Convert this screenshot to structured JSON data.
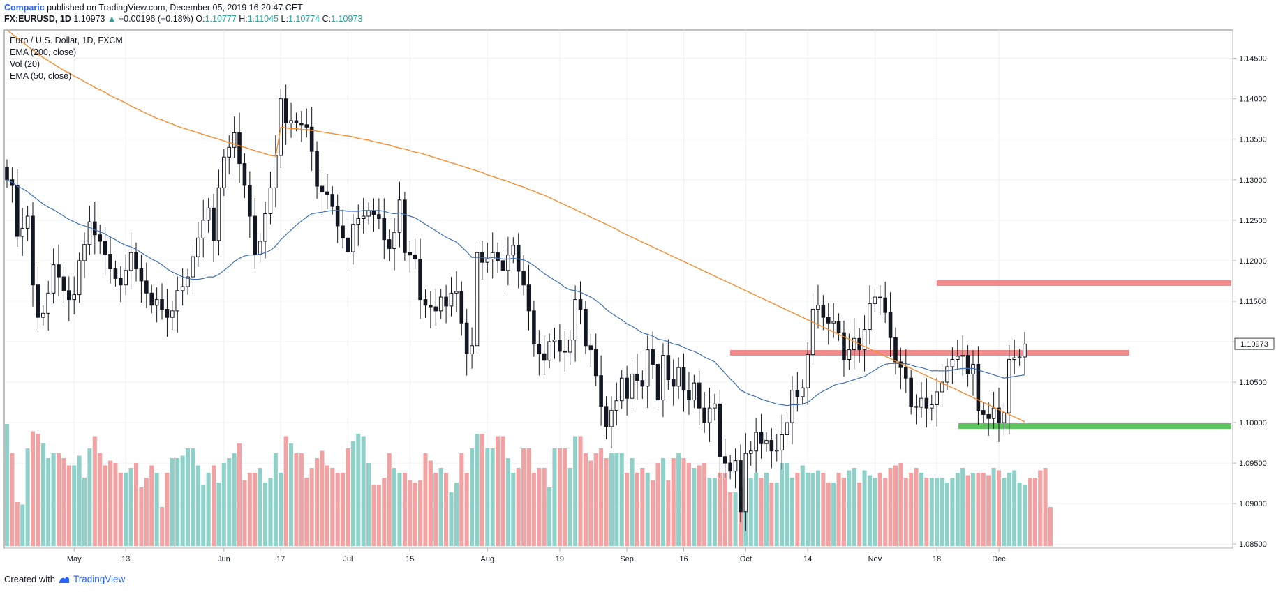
{
  "header": {
    "author": "Comparic",
    "published_text": "published on TradingView.com, December 05, 2019 16:20:47 CET",
    "symbol": "FX:EURUSD, 1D",
    "last": "1.10973",
    "change_arrow": "▲",
    "change": "+0.00196 (+0.18%)",
    "o_label": "O:",
    "o": "1.10777",
    "h_label": "H:",
    "h": "1.11045",
    "l_label": "L:",
    "l": "1.10774",
    "c_label": "C:",
    "c": "1.10973"
  },
  "legend": {
    "title": "Euro / U.S. Dollar, 1D, FXCM",
    "ind1": "EMA (200, close)",
    "ind2": "Vol (20)",
    "ind3": "EMA (50, close)"
  },
  "footer": {
    "created_with": "Created with",
    "brand": "TradingView"
  },
  "colors": {
    "up_volume": "#8fd1c9",
    "down_volume": "#f2a2a2",
    "ema200": "#f68c2f",
    "ema50": "#3e6fb5",
    "resistance": "#f28c8c",
    "support": "#5fc65f",
    "price_badge_bg": "#ffffff"
  },
  "chart_data": {
    "type": "candlestick",
    "title": "Euro / U.S. Dollar, 1D, FXCM",
    "ylim": [
      1.0845,
      1.1485
    ],
    "y_ticks": [
      "1.14500",
      "1.14000",
      "1.13500",
      "1.13000",
      "1.12500",
      "1.12000",
      "1.11500",
      "1.11000",
      "1.10500",
      "1.10000",
      "1.09500",
      "1.09000",
      "1.08500"
    ],
    "last_price_label": "1.10973",
    "x_ticks": [
      {
        "label": "May",
        "i": 13
      },
      {
        "label": "13",
        "i": 23
      },
      {
        "label": "Jun",
        "i": 42
      },
      {
        "label": "17",
        "i": 53
      },
      {
        "label": "Jul",
        "i": 66
      },
      {
        "label": "15",
        "i": 78
      },
      {
        "label": "Aug",
        "i": 93
      },
      {
        "label": "19",
        "i": 107
      },
      {
        "label": "Sep",
        "i": 120
      },
      {
        "label": "16",
        "i": 131
      },
      {
        "label": "Oct",
        "i": 143
      },
      {
        "label": "14",
        "i": 155
      },
      {
        "label": "Nov",
        "i": 168
      },
      {
        "label": "18",
        "i": 180
      },
      {
        "label": "Dec",
        "i": 192
      }
    ],
    "closes": [
      1.13,
      1.1293,
      1.123,
      1.124,
      1.1255,
      1.117,
      1.113,
      1.1135,
      1.116,
      1.1195,
      1.118,
      1.1163,
      1.1152,
      1.1158,
      1.12,
      1.122,
      1.1248,
      1.1232,
      1.1224,
      1.1208,
      1.119,
      1.1178,
      1.117,
      1.1188,
      1.121,
      1.119,
      1.1175,
      1.116,
      1.1145,
      1.1152,
      1.114,
      1.113,
      1.1138,
      1.1163,
      1.1168,
      1.118,
      1.1205,
      1.1228,
      1.125,
      1.1265,
      1.1225,
      1.129,
      1.1328,
      1.134,
      1.1358,
      1.132,
      1.1293,
      1.1255,
      1.1208,
      1.1224,
      1.1258,
      1.129,
      1.133,
      1.14,
      1.137,
      1.1373,
      1.137,
      1.1368,
      1.1365,
      1.1335,
      1.1292,
      1.1285,
      1.1282,
      1.1267,
      1.1243,
      1.1228,
      1.1211,
      1.1245,
      1.1252,
      1.1255,
      1.1262,
      1.1257,
      1.1252,
      1.1226,
      1.1215,
      1.1235,
      1.1275,
      1.121,
      1.1207,
      1.1202,
      1.1152,
      1.1145,
      1.1143,
      1.1138,
      1.1155,
      1.1144,
      1.116,
      1.1162,
      1.1123,
      1.1085,
      1.1095,
      1.121,
      1.1198,
      1.1202,
      1.121,
      1.12,
      1.1188,
      1.1207,
      1.1219,
      1.1187,
      1.117,
      1.1138,
      1.1097,
      1.1085,
      1.1077,
      1.11,
      1.1102,
      1.1088,
      1.1087,
      1.1102,
      1.1152,
      1.114,
      1.1095,
      1.109,
      1.1058,
      1.102,
      1.0995,
      1.1015,
      1.1027,
      1.1055,
      1.103,
      1.106,
      1.1052,
      1.1045,
      1.109,
      1.1072,
      1.1028,
      1.1083,
      1.1053,
      1.1045,
      1.1068,
      1.104,
      1.1028,
      1.1049,
      1.1018,
      1.1,
      1.1018,
      1.1023,
      1.0958,
      1.095,
      1.094,
      1.0953,
      1.089,
      1.0962,
      1.0965,
      1.0988,
      1.0974,
      1.0978,
      1.0965,
      1.0966,
      1.0985,
      1.1,
      1.104,
      1.1032,
      1.1043,
      1.1084,
      1.114,
      1.1145,
      1.113,
      1.1123,
      1.1125,
      1.1111,
      1.1078,
      1.109,
      1.1104,
      1.109,
      1.1115,
      1.1147,
      1.1155,
      1.1154,
      1.1136,
      1.1105,
      1.1075,
      1.1068,
      1.1055,
      1.102,
      1.1019,
      1.103,
      1.1018,
      1.1022,
      1.1038,
      1.105,
      1.1069,
      1.1078,
      1.1082,
      1.1083,
      1.106,
      1.1072,
      1.1015,
      1.101,
      1.1005,
      1.1018,
      1.1,
      1.1012,
      1.1078,
      1.108,
      1.1081,
      1.1097
    ],
    "ema200": [
      1.1485,
      1.148,
      1.1475,
      1.147,
      1.1465,
      1.146,
      1.1455,
      1.1451,
      1.1447,
      1.1443,
      1.1439,
      1.1435,
      1.1432,
      1.1428,
      1.1425,
      1.1421,
      1.1418,
      1.1414,
      1.1411,
      1.1408,
      1.1404,
      1.1401,
      1.1398,
      1.1395,
      1.1391,
      1.1388,
      1.1385,
      1.1382,
      1.1379,
      1.1376,
      1.1374,
      1.1371,
      1.1369,
      1.1366,
      1.1364,
      1.1362,
      1.136,
      1.1358,
      1.1356,
      1.1354,
      1.1352,
      1.135,
      1.1348,
      1.1346,
      1.1344,
      1.1342,
      1.134,
      1.1338,
      1.1336,
      1.1334,
      1.1332,
      1.133,
      1.1329,
      1.1365,
      1.1364,
      1.1363,
      1.1363,
      1.1362,
      1.1362,
      1.1361,
      1.136,
      1.1359,
      1.1358,
      1.1357,
      1.1356,
      1.1355,
      1.1354,
      1.1353,
      1.1351,
      1.135,
      1.1349,
      1.1347,
      1.1346,
      1.1344,
      1.1343,
      1.1341,
      1.1339,
      1.1338,
      1.1336,
      1.1334,
      1.1333,
      1.1331,
      1.1329,
      1.1327,
      1.1325,
      1.1323,
      1.1321,
      1.1319,
      1.1317,
      1.1315,
      1.1313,
      1.1311,
      1.1309,
      1.1306,
      1.1304,
      1.1302,
      1.13,
      1.1298,
      1.1295,
      1.1293,
      1.1291,
      1.1288,
      1.1286,
      1.1283,
      1.1281,
      1.1278,
      1.1275,
      1.1272,
      1.1269,
      1.1266,
      1.1263,
      1.126,
      1.1257,
      1.1254,
      1.1251,
      1.1248,
      1.1245,
      1.1242,
      1.1239,
      1.1235,
      1.1232,
      1.1229,
      1.1226,
      1.1223,
      1.122,
      1.1217,
      1.1214,
      1.1211,
      1.1208,
      1.1205,
      1.1202,
      1.1199,
      1.1196,
      1.1193,
      1.119,
      1.1187,
      1.1184,
      1.1181,
      1.1178,
      1.1175,
      1.1172,
      1.1169,
      1.1166,
      1.1163,
      1.116,
      1.1157,
      1.1154,
      1.1151,
      1.1148,
      1.1145,
      1.1142,
      1.1139,
      1.1136,
      1.1133,
      1.113,
      1.1127,
      1.1124,
      1.1121,
      1.1118,
      1.1115,
      1.1112,
      1.1109,
      1.1106,
      1.1103,
      1.11,
      1.1097,
      1.1094,
      1.1091,
      1.1088,
      1.1085,
      1.1082,
      1.1079,
      1.1076,
      1.1073,
      1.107,
      1.1067,
      1.1064,
      1.1061,
      1.1058,
      1.1055,
      1.1052,
      1.1049,
      1.1046,
      1.1043,
      1.104,
      1.1037,
      1.1034,
      1.1031,
      1.1028,
      1.1025,
      1.1022,
      1.1019,
      1.1016,
      1.1013,
      1.101,
      1.1007,
      1.1004,
      1.1001
    ],
    "ema50": [
      1.13,
      1.1297,
      1.1292,
      1.1289,
      1.1285,
      1.128,
      1.1275,
      1.127,
      1.1266,
      1.1263,
      1.1259,
      1.1255,
      1.1251,
      1.1248,
      1.1245,
      1.1243,
      1.1241,
      1.1238,
      1.1236,
      1.1233,
      1.1229,
      1.1226,
      1.1222,
      1.1219,
      1.1217,
      1.1214,
      1.121,
      1.1206,
      1.1202,
      1.1199,
      1.1195,
      1.119,
      1.1186,
      1.1183,
      1.118,
      1.1178,
      1.1177,
      1.1177,
      1.1178,
      1.118,
      1.118,
      1.1183,
      1.1188,
      1.1193,
      1.1199,
      1.1203,
      1.1206,
      1.1207,
      1.1207,
      1.1208,
      1.121,
      1.1213,
      1.1218,
      1.1226,
      1.1232,
      1.1238,
      1.1244,
      1.1249,
      1.1254,
      1.1258,
      1.1259,
      1.126,
      1.1261,
      1.1262,
      1.1262,
      1.1262,
      1.1261,
      1.1261,
      1.1261,
      1.1262,
      1.1262,
      1.1262,
      1.1262,
      1.1261,
      1.1259,
      1.1258,
      1.1259,
      1.1257,
      1.1255,
      1.1253,
      1.1249,
      1.1245,
      1.1241,
      1.1237,
      1.1233,
      1.1229,
      1.1226,
      1.1223,
      1.1217,
      1.1211,
      1.1204,
      1.1204,
      1.1204,
      1.1203,
      1.1204,
      1.1203,
      1.1202,
      1.1202,
      1.1203,
      1.1202,
      1.1201,
      1.1198,
      1.1194,
      1.1189,
      1.1184,
      1.118,
      1.1176,
      1.1172,
      1.1167,
      1.1164,
      1.1163,
      1.1161,
      1.1158,
      1.1155,
      1.1151,
      1.1146,
      1.114,
      1.1135,
      1.1131,
      1.1127,
      1.1122,
      1.1119,
      1.1115,
      1.1111,
      1.1109,
      1.1107,
      1.1103,
      1.1102,
      1.11,
      1.1097,
      1.1096,
      1.1093,
      1.109,
      1.1088,
      1.1085,
      1.1081,
      1.1078,
      1.1075,
      1.1068,
      1.1061,
      1.1054,
      1.1048,
      1.104,
      1.1037,
      1.1034,
      1.1032,
      1.1029,
      1.1027,
      1.1025,
      1.1023,
      1.1022,
      1.1021,
      1.1022,
      1.1022,
      1.1023,
      1.1025,
      1.103,
      1.1035,
      1.1039,
      1.1042,
      1.1046,
      1.1048,
      1.1049,
      1.1051,
      1.1053,
      1.1055,
      1.1057,
      1.1061,
      1.1065,
      1.1069,
      1.1072,
      1.1073,
      1.1073,
      1.1073,
      1.1073,
      1.1071,
      1.1069,
      1.1068,
      1.1066,
      1.1064,
      1.1064,
      1.1064,
      1.1064,
      1.1065,
      1.1066,
      1.1067,
      1.1067,
      1.1067,
      1.1065,
      1.1063,
      1.1061,
      1.1059,
      1.1057,
      1.1055,
      1.1056,
      1.1057,
      1.1058,
      1.1059
    ],
    "volume": [
      50,
      38,
      18,
      17,
      40,
      47,
      46,
      42,
      36,
      38,
      38,
      36,
      33,
      33,
      37,
      28,
      40,
      45,
      38,
      33,
      35,
      34,
      30,
      30,
      32,
      34,
      24,
      28,
      33,
      30,
      16,
      30,
      36,
      36,
      37,
      40,
      40,
      33,
      25,
      30,
      33,
      26,
      34,
      36,
      38,
      42,
      27,
      30,
      30,
      32,
      26,
      28,
      38,
      30,
      45,
      42,
      38,
      38,
      28,
      32,
      36,
      39,
      33,
      32,
      30,
      30,
      40,
      43,
      46,
      45,
      34,
      25,
      25,
      28,
      38,
      32,
      30,
      30,
      27,
      26,
      27,
      38,
      35,
      30,
      32,
      30,
      22,
      26,
      38,
      30,
      40,
      46,
      46,
      40,
      40,
      45,
      45,
      36,
      30,
      32,
      40,
      40,
      30,
      32,
      32,
      24,
      40,
      40,
      40,
      32,
      45,
      45,
      38,
      35,
      38,
      40,
      36,
      38,
      38,
      38,
      30,
      36,
      30,
      32,
      30,
      27,
      34,
      36,
      27,
      36,
      38,
      36,
      34,
      32,
      33,
      34,
      28,
      28,
      30,
      30,
      22,
      22,
      24,
      28,
      28,
      30,
      28,
      30,
      26,
      26,
      34,
      34,
      28,
      30,
      33,
      30,
      30,
      31,
      30,
      26,
      26,
      30,
      28,
      31,
      32,
      26,
      31,
      29,
      28,
      30,
      28,
      32,
      33,
      34,
      28,
      30,
      32,
      30,
      28,
      28,
      28,
      28,
      26,
      28,
      30,
      32,
      29,
      30,
      30,
      30,
      29,
      32,
      31,
      28,
      30,
      31,
      26,
      25,
      28,
      28,
      31,
      32,
      16
    ]
  }
}
